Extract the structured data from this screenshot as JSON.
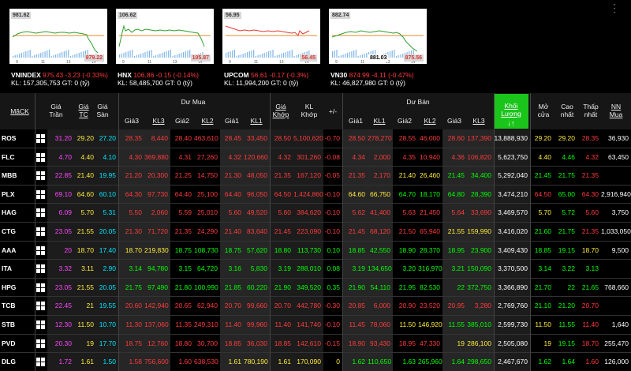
{
  "indices": [
    {
      "name": "VNINDEX",
      "value": "975.43",
      "change": "-3.23",
      "pct": "-0.33%",
      "kl": "157,305,753",
      "gt": "0",
      "high_label": "981.62",
      "low_label": "979.22",
      "color": "red",
      "ticks": [
        "9",
        "11",
        "13",
        "14"
      ]
    },
    {
      "name": "HNX",
      "value": "106.86",
      "change": "-0.15",
      "pct": "-0.14%",
      "kl": "58,485,700",
      "gt": "0",
      "high_label": "106.62",
      "low_label": "105.87",
      "color": "red",
      "ticks": [
        "9",
        "11",
        "13",
        "14"
      ]
    },
    {
      "name": "UPCOM",
      "value": "56.61",
      "change": "-0.17",
      "pct": "-0.3%",
      "kl": "11,994,200",
      "gt": "0",
      "high_label": "56.95",
      "low_label": "56.45",
      "color": "red",
      "ticks": [
        "9",
        "11",
        "13",
        "14"
      ]
    },
    {
      "name": "VN30",
      "value": "874.99",
      "change": "-4.11",
      "pct": "-0.47%",
      "kl": "46,827,980",
      "gt": "0",
      "high_label": "882.74",
      "low_label": "875.56",
      "mid_label": "881.03",
      "color": "red",
      "ticks": [
        "9",
        "11",
        "13",
        "14"
      ]
    }
  ],
  "index_labels": {
    "kl": "KL:",
    "gt": "GT:",
    "unit": "(tỷ)"
  },
  "header": {
    "ma_ck": "MãCK",
    "gia_tran": "Giá Trần",
    "gia_tc": "Giá TC",
    "gia_san": "Giá Sàn",
    "du_mua": "Dư Mua",
    "du_ban": "Dư Bán",
    "gia3": "Giá3",
    "kl3": "KL3",
    "gia2": "Giá2",
    "kl2": "KL2",
    "gia1": "Giá1",
    "kl1": "KL1",
    "gia_khop": "Giá Khớp",
    "kl_khop": "KL Khớp",
    "plus_minus": "+/-",
    "khoi_luong": "Khối Lượng",
    "sort_arrow": "↓↑",
    "mo_cua": "Mở cửa",
    "cao_nhat": "Cao nhất",
    "thap_nhat": "Thấp nhất",
    "nn_mua": "NN Mua"
  },
  "rows": [
    {
      "code": "ROS",
      "tran": "31.20",
      "tc": "29.20",
      "san": "27.20",
      "b3": "28.35",
      "bk3": "8,440",
      "b2": "28.40",
      "bk2": "463,610",
      "b1": "28.45",
      "bk1": "33,450",
      "khop": "28.50",
      "klk": "5,100,620",
      "chg": "-0.70",
      "s1": "28.50",
      "sk1": "278,270",
      "s2": "28.55",
      "sk2": "46,000",
      "s3": "28.60",
      "sk3": "137,390",
      "vol": "13,888,930",
      "mo": "29.20",
      "cao": "29.20",
      "thap": "28.35",
      "nn": "36,930",
      "c": {
        "b3": "red",
        "bk3": "red",
        "b2": "red",
        "bk2": "red",
        "b1": "red",
        "bk1": "red",
        "khop": "red",
        "klk": "red",
        "chg": "red",
        "s1": "red",
        "sk1": "red",
        "s2": "red",
        "sk2": "red",
        "s3": "red",
        "sk3": "red",
        "mo": "yellow",
        "cao": "yellow",
        "thap": "red"
      }
    },
    {
      "code": "FLC",
      "tran": "4.70",
      "tc": "4.40",
      "san": "4.10",
      "b3": "4.30",
      "bk3": "369,880",
      "b2": "4.31",
      "bk2": "27,260",
      "b1": "4.32",
      "bk1": "120,660",
      "khop": "4.32",
      "klk": "301,260",
      "chg": "-0.08",
      "s1": "4.34",
      "sk1": "2,000",
      "s2": "4.35",
      "sk2": "10,940",
      "s3": "4.36",
      "sk3": "106,820",
      "vol": "5,623,750",
      "mo": "4.40",
      "cao": "4.46",
      "thap": "4.32",
      "nn": "63,450",
      "c": {
        "b3": "red",
        "bk3": "red",
        "b2": "red",
        "bk2": "red",
        "b1": "red",
        "bk1": "red",
        "khop": "red",
        "klk": "red",
        "chg": "red",
        "s1": "red",
        "sk1": "red",
        "s2": "red",
        "sk2": "red",
        "s3": "red",
        "sk3": "red",
        "mo": "yellow",
        "cao": "green",
        "thap": "red"
      }
    },
    {
      "code": "MBB",
      "tran": "22.85",
      "tc": "21.40",
      "san": "19.95",
      "b3": "21.20",
      "bk3": "20,300",
      "b2": "21.25",
      "bk2": "14,750",
      "b1": "21.30",
      "bk1": "48,050",
      "khop": "21.35",
      "klk": "167,120",
      "chg": "-0.05",
      "s1": "21.35",
      "sk1": "2,170",
      "s2": "21.40",
      "sk2": "26,460",
      "s3": "21.45",
      "sk3": "34,400",
      "vol": "5,292,040",
      "mo": "21.45",
      "cao": "21.75",
      "thap": "21.35",
      "nn": "",
      "c": {
        "b3": "red",
        "bk3": "red",
        "b2": "red",
        "bk2": "red",
        "b1": "red",
        "bk1": "red",
        "khop": "red",
        "klk": "red",
        "chg": "red",
        "s1": "red",
        "sk1": "red",
        "s2": "yellow",
        "sk2": "yellow",
        "s3": "green",
        "sk3": "green",
        "mo": "green",
        "cao": "green",
        "thap": "red"
      }
    },
    {
      "code": "PLX",
      "tran": "69.10",
      "tc": "64.60",
      "san": "60.10",
      "b3": "64.30",
      "bk3": "97,730",
      "b2": "64.40",
      "bk2": "25,100",
      "b1": "64.40",
      "bk1": "96,050",
      "khop": "64.50",
      "klk": "1,424,860",
      "chg": "-0.10",
      "s1": "64.60",
      "sk1": "66,750",
      "s2": "64.70",
      "sk2": "18,170",
      "s3": "64.80",
      "sk3": "28,390",
      "vol": "3,474,210",
      "mo": "64.50",
      "cao": "65.00",
      "thap": "64.30",
      "nn": "2,916,940",
      "c": {
        "b3": "red",
        "bk3": "red",
        "b2": "red",
        "bk2": "red",
        "b1": "red",
        "bk1": "red",
        "khop": "red",
        "klk": "red",
        "chg": "red",
        "s1": "yellow",
        "sk1": "yellow",
        "s2": "green",
        "sk2": "green",
        "s3": "green",
        "sk3": "green",
        "mo": "red",
        "cao": "green",
        "thap": "red"
      }
    },
    {
      "code": "HAG",
      "tran": "6.09",
      "tc": "5.70",
      "san": "5.31",
      "b3": "5.50",
      "bk3": "2,060",
      "b2": "5.59",
      "bk2": "25,010",
      "b1": "5.60",
      "bk1": "49,520",
      "khop": "5.60",
      "klk": "384,620",
      "chg": "-0.10",
      "s1": "5.62",
      "sk1": "41,400",
      "s2": "5.63",
      "sk2": "21,450",
      "s3": "5.64",
      "sk3": "33,690",
      "vol": "3,469,570",
      "mo": "5.70",
      "cao": "5.72",
      "thap": "5.60",
      "nn": "3,750",
      "c": {
        "b3": "red",
        "bk3": "red",
        "b2": "red",
        "bk2": "red",
        "b1": "red",
        "bk1": "red",
        "khop": "red",
        "klk": "red",
        "chg": "red",
        "s1": "red",
        "sk1": "red",
        "s2": "red",
        "sk2": "red",
        "s3": "red",
        "sk3": "red",
        "mo": "yellow",
        "cao": "green",
        "thap": "red"
      }
    },
    {
      "code": "CTG",
      "tran": "23.05",
      "tc": "21.55",
      "san": "20.05",
      "b3": "21.30",
      "bk3": "71,720",
      "b2": "21.35",
      "bk2": "24,290",
      "b1": "21.40",
      "bk1": "83,640",
      "khop": "21.45",
      "klk": "223,090",
      "chg": "-0.10",
      "s1": "21.45",
      "sk1": "68,120",
      "s2": "21.50",
      "sk2": "65,940",
      "s3": "21.55",
      "sk3": "159,990",
      "vol": "3,416,020",
      "mo": "21.60",
      "cao": "21.75",
      "thap": "21.35",
      "nn": "1,033,050",
      "c": {
        "b3": "red",
        "bk3": "red",
        "b2": "red",
        "bk2": "red",
        "b1": "red",
        "bk1": "red",
        "khop": "red",
        "klk": "red",
        "chg": "red",
        "s1": "red",
        "sk1": "red",
        "s2": "red",
        "sk2": "red",
        "s3": "yellow",
        "sk3": "yellow",
        "mo": "green",
        "cao": "green",
        "thap": "red"
      }
    },
    {
      "code": "AAA",
      "tran": "20",
      "tc": "18.70",
      "san": "17.40",
      "b3": "18.70",
      "bk3": "219,830",
      "b2": "18.75",
      "bk2": "108,730",
      "b1": "18.75",
      "bk1": "57,620",
      "khop": "18.80",
      "klk": "113,730",
      "chg": "0.10",
      "s1": "18.85",
      "sk1": "42,550",
      "s2": "18.90",
      "sk2": "28,370",
      "s3": "18.95",
      "sk3": "23,900",
      "vol": "3,409,430",
      "mo": "18.85",
      "cao": "19.15",
      "thap": "18.70",
      "nn": "9,500",
      "c": {
        "b3": "yellow",
        "bk3": "yellow",
        "b2": "green",
        "bk2": "green",
        "b1": "green",
        "bk1": "green",
        "khop": "green",
        "klk": "green",
        "chg": "green",
        "s1": "green",
        "sk1": "green",
        "s2": "green",
        "sk2": "green",
        "s3": "green",
        "sk3": "green",
        "mo": "green",
        "cao": "green",
        "thap": "yellow"
      }
    },
    {
      "code": "ITA",
      "tran": "3.32",
      "tc": "3.11",
      "san": "2.90",
      "b3": "3.14",
      "bk3": "94,780",
      "b2": "3.15",
      "bk2": "64,720",
      "b1": "3.16",
      "bk1": "5,830",
      "khop": "3.19",
      "klk": "288,010",
      "chg": "0.08",
      "s1": "3.19",
      "sk1": "134,650",
      "s2": "3.20",
      "sk2": "316,970",
      "s3": "3.21",
      "sk3": "150,090",
      "vol": "3,370,500",
      "mo": "3.14",
      "cao": "3.22",
      "thap": "3.13",
      "nn": "",
      "c": {
        "b3": "green",
        "bk3": "green",
        "b2": "green",
        "bk2": "green",
        "b1": "green",
        "bk1": "green",
        "khop": "green",
        "klk": "green",
        "chg": "green",
        "s1": "green",
        "sk1": "green",
        "s2": "green",
        "sk2": "green",
        "s3": "green",
        "sk3": "green",
        "mo": "green",
        "cao": "green",
        "thap": "green"
      }
    },
    {
      "code": "HPG",
      "tran": "23.05",
      "tc": "21.55",
      "san": "20.05",
      "b3": "21.75",
      "bk3": "97,490",
      "b2": "21.80",
      "bk2": "100,990",
      "b1": "21.85",
      "bk1": "60,220",
      "khop": "21.90",
      "klk": "349,520",
      "chg": "0.35",
      "s1": "21.90",
      "sk1": "54,110",
      "s2": "21.95",
      "sk2": "82,530",
      "s3": "22",
      "sk3": "372,750",
      "vol": "3,366,890",
      "mo": "21.70",
      "cao": "22",
      "thap": "21.65",
      "nn": "768,660",
      "c": {
        "b3": "green",
        "bk3": "green",
        "b2": "green",
        "bk2": "green",
        "b1": "green",
        "bk1": "green",
        "khop": "green",
        "klk": "green",
        "chg": "green",
        "s1": "green",
        "sk1": "green",
        "s2": "green",
        "sk2": "green",
        "s3": "green",
        "sk3": "green",
        "mo": "green",
        "cao": "green",
        "thap": "green"
      }
    },
    {
      "code": "TCB",
      "tran": "22.45",
      "tc": "21",
      "san": "19.55",
      "b3": "20.60",
      "bk3": "142,940",
      "b2": "20.65",
      "bk2": "62,940",
      "b1": "20.70",
      "bk1": "99,660",
      "khop": "20.70",
      "klk": "442,780",
      "chg": "-0.30",
      "s1": "20.85",
      "sk1": "6,000",
      "s2": "20.90",
      "sk2": "23,520",
      "s3": "20.95",
      "sk3": "3,280",
      "vol": "2,769,760",
      "mo": "21.10",
      "cao": "21.20",
      "thap": "20.70",
      "nn": "",
      "c": {
        "b3": "red",
        "bk3": "red",
        "b2": "red",
        "bk2": "red",
        "b1": "red",
        "bk1": "red",
        "khop": "red",
        "klk": "red",
        "chg": "red",
        "s1": "red",
        "sk1": "red",
        "s2": "red",
        "sk2": "red",
        "s3": "red",
        "sk3": "red",
        "mo": "green",
        "cao": "green",
        "thap": "red"
      }
    },
    {
      "code": "STB",
      "tran": "12.30",
      "tc": "11.50",
      "san": "10.70",
      "b3": "11.30",
      "bk3": "137,060",
      "b2": "11.35",
      "bk2": "249,310",
      "b1": "11.40",
      "bk1": "99,960",
      "khop": "11.40",
      "klk": "141,740",
      "chg": "-0.10",
      "s1": "11.45",
      "sk1": "78,060",
      "s2": "11.50",
      "sk2": "146,920",
      "s3": "11.55",
      "sk3": "385,010",
      "vol": "2,599,730",
      "mo": "11.50",
      "cao": "11.55",
      "thap": "11.40",
      "nn": "1,640",
      "c": {
        "b3": "red",
        "bk3": "red",
        "b2": "red",
        "bk2": "red",
        "b1": "red",
        "bk1": "red",
        "khop": "red",
        "klk": "red",
        "chg": "red",
        "s1": "red",
        "sk1": "red",
        "s2": "yellow",
        "sk2": "yellow",
        "s3": "green",
        "sk3": "green",
        "mo": "yellow",
        "cao": "green",
        "thap": "red"
      }
    },
    {
      "code": "PVD",
      "tran": "20.30",
      "tc": "19",
      "san": "17.70",
      "b3": "18.75",
      "bk3": "12,760",
      "b2": "18.80",
      "bk2": "30,700",
      "b1": "18.85",
      "bk1": "36,030",
      "khop": "18.85",
      "klk": "142,610",
      "chg": "-0.15",
      "s1": "18.90",
      "sk1": "93,430",
      "s2": "18.95",
      "sk2": "47,330",
      "s3": "19",
      "sk3": "286,100",
      "vol": "2,505,080",
      "mo": "19",
      "cao": "19.15",
      "thap": "18.70",
      "nn": "255,470",
      "c": {
        "b3": "red",
        "bk3": "red",
        "b2": "red",
        "bk2": "red",
        "b1": "red",
        "bk1": "red",
        "khop": "red",
        "klk": "red",
        "chg": "red",
        "s1": "red",
        "sk1": "red",
        "s2": "red",
        "sk2": "red",
        "s3": "yellow",
        "sk3": "yellow",
        "mo": "yellow",
        "cao": "green",
        "thap": "red"
      }
    },
    {
      "code": "DLG",
      "tran": "1.72",
      "tc": "1.61",
      "san": "1.50",
      "b3": "1.58",
      "bk3": "756,600",
      "b2": "1.60",
      "bk2": "638,530",
      "b1": "1.61",
      "bk1": "780,190",
      "khop": "1.61",
      "klk": "170,090",
      "chg": "0",
      "s1": "1.62",
      "sk1": "110,650",
      "s2": "1.63",
      "sk2": "265,960",
      "s3": "1.64",
      "sk3": "298,650",
      "vol": "2,467,670",
      "mo": "1.62",
      "cao": "1.64",
      "thap": "1.60",
      "nn": "126,000",
      "c": {
        "b3": "red",
        "bk3": "red",
        "b2": "red",
        "bk2": "red",
        "b1": "yellow",
        "bk1": "yellow",
        "khop": "yellow",
        "klk": "yellow",
        "chg": "yellow",
        "s1": "green",
        "sk1": "green",
        "s2": "green",
        "sk2": "green",
        "s3": "green",
        "sk3": "green",
        "mo": "green",
        "cao": "green",
        "thap": "red"
      }
    }
  ],
  "colors": {
    "red": "#ff3b3b",
    "green": "#00ff00",
    "yellow": "#ffeb3b",
    "cyan": "#00e5ff",
    "pink": "#ff47ff",
    "vol_header": "#1bc41b"
  }
}
